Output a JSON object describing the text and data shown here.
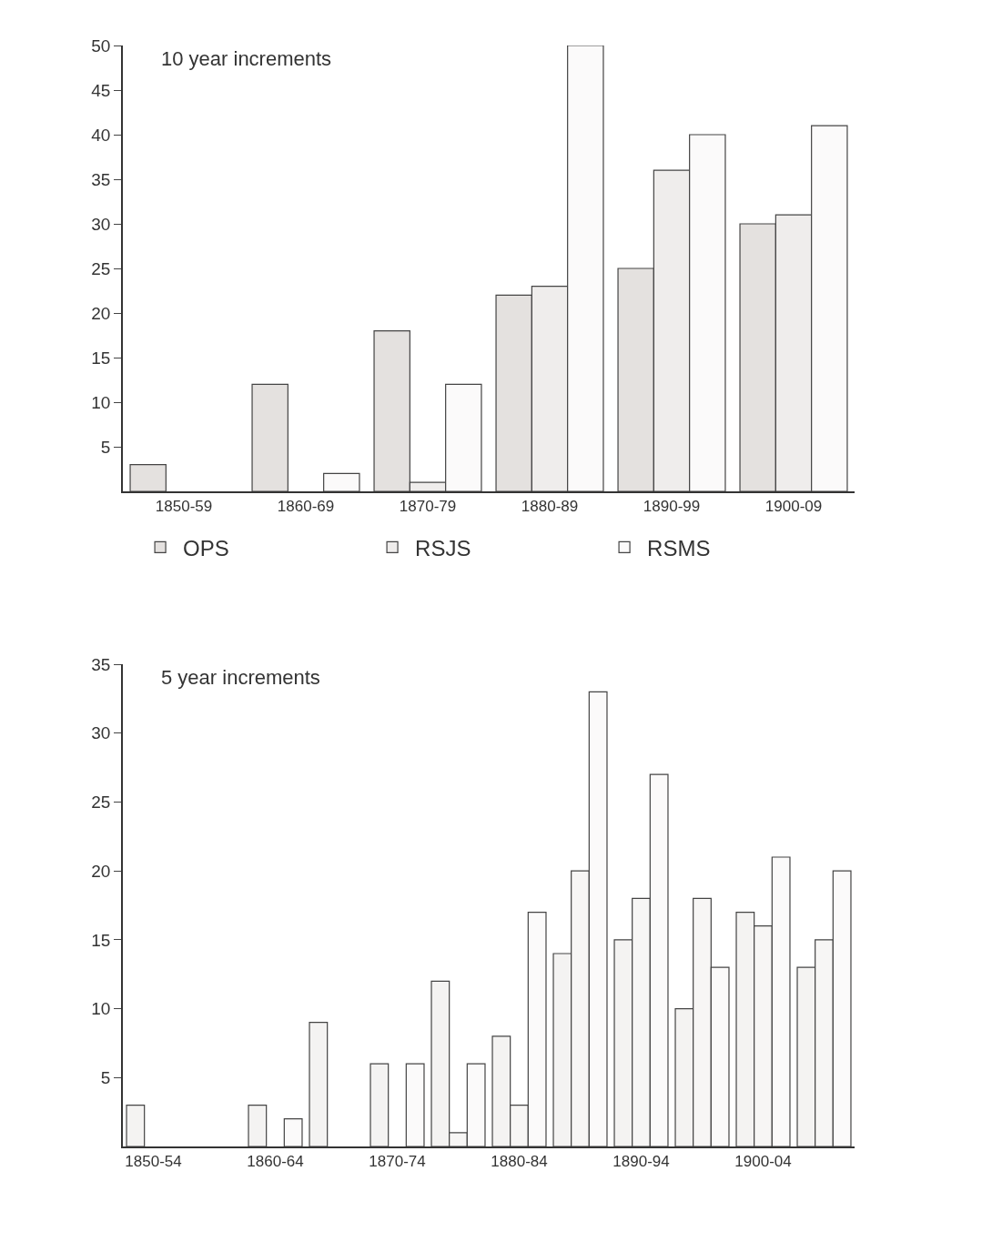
{
  "chart_data": [
    {
      "type": "bar",
      "title": "10 year increments",
      "categories": [
        "1850-59",
        "1860-69",
        "1870-79",
        "1880-89",
        "1890-99",
        "1900-09"
      ],
      "series": [
        {
          "name": "OPS",
          "color": "#e4e1df",
          "values": [
            3,
            12,
            18,
            22,
            25,
            30
          ]
        },
        {
          "name": "RSJS",
          "color": "#efedec",
          "values": [
            null,
            null,
            1,
            23,
            36,
            31
          ]
        },
        {
          "name": "RSMS",
          "color": "#fbfafa",
          "values": [
            null,
            2,
            12,
            50,
            40,
            41
          ]
        }
      ],
      "ylim": [
        0,
        50
      ],
      "yticks": [
        5,
        10,
        15,
        20,
        25,
        30,
        35,
        40,
        45,
        50
      ],
      "grid": false,
      "legend": "bottom"
    },
    {
      "type": "bar",
      "title": "5 year increments",
      "categories": [
        "1850-54",
        null,
        "1860-64",
        null,
        "1870-74",
        null,
        "1880-84",
        null,
        "1890-94",
        null,
        "1900-04",
        null
      ],
      "series": [
        {
          "color": "#f4f3f2",
          "values": [
            3,
            null,
            3,
            9,
            6,
            12,
            8,
            14,
            15,
            10,
            17,
            13
          ]
        },
        {
          "color": "#f7f6f5",
          "values": [
            null,
            null,
            null,
            null,
            null,
            1,
            3,
            20,
            18,
            18,
            16,
            15
          ]
        },
        {
          "color": "#fbfafa",
          "values": [
            null,
            null,
            2,
            null,
            6,
            6,
            17,
            33,
            27,
            13,
            21,
            20
          ]
        }
      ],
      "ylim": [
        0,
        35
      ],
      "yticks": [
        5,
        10,
        15,
        20,
        25,
        30,
        35
      ],
      "grid": false,
      "legend": false
    }
  ]
}
